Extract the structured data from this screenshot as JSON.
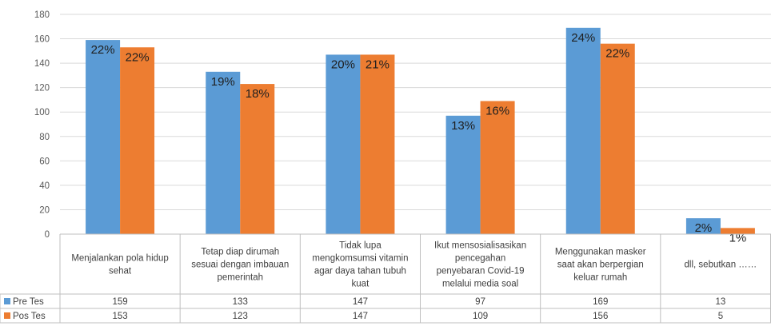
{
  "chart_data": {
    "type": "bar",
    "ylim": [
      0,
      180
    ],
    "yticks": [
      0,
      20,
      40,
      60,
      80,
      100,
      120,
      140,
      160,
      180
    ],
    "grid": true,
    "legend": "data-table",
    "categories": [
      [
        "Menjalankan pola hidup",
        "sehat"
      ],
      [
        "Tetap diap dirumah",
        "sesuai dengan imbauan",
        "pemerintah"
      ],
      [
        "Tidak lupa",
        "mengkomsumsi vitamin",
        "agar daya tahan tubuh",
        "kuat"
      ],
      [
        "Ikut mensosialisasikan",
        "pencegahan",
        "penyebaran Covid-19",
        "melalui media soal"
      ],
      [
        "Menggunakan masker",
        "saat akan berpergian",
        "keluar rumah"
      ],
      [
        "dll, sebutkan ……"
      ]
    ],
    "series": [
      {
        "name": "Pre Tes",
        "color": "#5b9bd5",
        "values": [
          159,
          133,
          147,
          97,
          169,
          13
        ],
        "labels": [
          "22%",
          "19%",
          "20%",
          "13%",
          "24%",
          "2%"
        ]
      },
      {
        "name": "Pos Tes",
        "color": "#ed7d31",
        "values": [
          153,
          123,
          147,
          109,
          156,
          5
        ],
        "labels": [
          "22%",
          "18%",
          "21%",
          "16%",
          "22%",
          "1%"
        ]
      }
    ]
  }
}
